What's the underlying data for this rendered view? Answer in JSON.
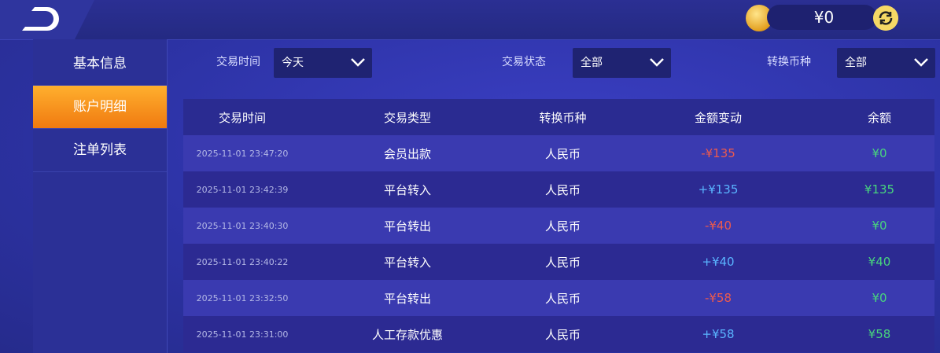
{
  "header": {
    "balance": "¥0"
  },
  "sidebar": {
    "items": [
      "基本信息",
      "账户明细",
      "注单列表"
    ],
    "active": 1
  },
  "filters": [
    {
      "label": "交易时间",
      "value": "今天"
    },
    {
      "label": "交易状态",
      "value": "全部"
    },
    {
      "label": "转换币种",
      "value": "全部"
    }
  ],
  "table": {
    "columns": [
      "交易时间",
      "交易类型",
      "转换币种",
      "金额变动",
      "余额"
    ],
    "rows": [
      [
        "2025-11-01 23:47:20",
        "会员出款",
        "人民币",
        "-¥135",
        "¥0"
      ],
      [
        "2025-11-01 23:42:39",
        "平台转入",
        "人民币",
        "+¥135",
        "¥135"
      ],
      [
        "2025-11-01 23:40:30",
        "平台转出",
        "人民币",
        "-¥40",
        "¥0"
      ],
      [
        "2025-11-01 23:40:22",
        "平台转入",
        "人民币",
        "+¥40",
        "¥40"
      ],
      [
        "2025-11-01 23:32:50",
        "平台转出",
        "人民币",
        "-¥58",
        "¥0"
      ],
      [
        "2025-11-01 23:31:00",
        "人工存款优惠",
        "人民币",
        "+¥58",
        "¥58"
      ]
    ]
  }
}
